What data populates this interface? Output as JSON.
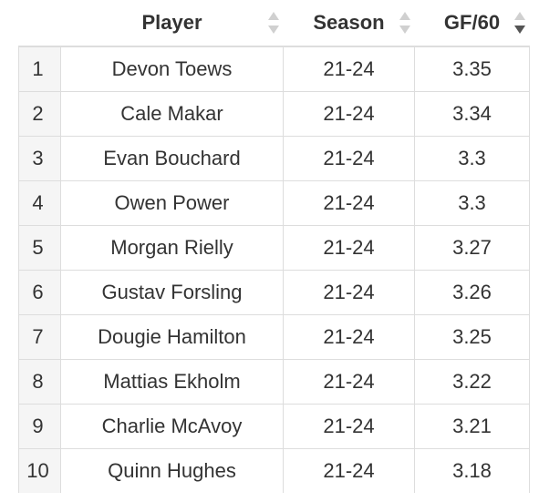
{
  "table": {
    "columns": {
      "player": "Player",
      "season": "Season",
      "gf60": "GF/60"
    },
    "sort": {
      "player": "none",
      "season": "none",
      "gf60": "descending"
    },
    "colors": {
      "sort_inactive": "#d0d0d0",
      "sort_active": "#555555",
      "rank_bg": "#f5f5f5",
      "grid": "#dddddd"
    },
    "rows": [
      {
        "rank": "1",
        "player": "Devon Toews",
        "season": "21-24",
        "gf60": "3.35"
      },
      {
        "rank": "2",
        "player": "Cale Makar",
        "season": "21-24",
        "gf60": "3.34"
      },
      {
        "rank": "3",
        "player": "Evan Bouchard",
        "season": "21-24",
        "gf60": "3.3"
      },
      {
        "rank": "4",
        "player": "Owen Power",
        "season": "21-24",
        "gf60": "3.3"
      },
      {
        "rank": "5",
        "player": "Morgan Rielly",
        "season": "21-24",
        "gf60": "3.27"
      },
      {
        "rank": "6",
        "player": "Gustav Forsling",
        "season": "21-24",
        "gf60": "3.26"
      },
      {
        "rank": "7",
        "player": "Dougie Hamilton",
        "season": "21-24",
        "gf60": "3.25"
      },
      {
        "rank": "8",
        "player": "Mattias Ekholm",
        "season": "21-24",
        "gf60": "3.22"
      },
      {
        "rank": "9",
        "player": "Charlie McAvoy",
        "season": "21-24",
        "gf60": "3.21"
      },
      {
        "rank": "10",
        "player": "Quinn Hughes",
        "season": "21-24",
        "gf60": "3.18"
      }
    ]
  }
}
